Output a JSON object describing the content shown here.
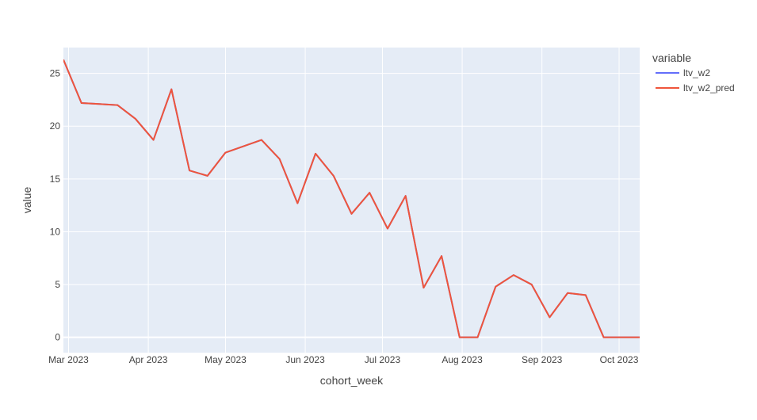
{
  "chart_data": {
    "type": "line",
    "xlabel": "cohort_week",
    "ylabel": "value",
    "x": [
      "2023-02-27",
      "2023-03-06",
      "2023-03-13",
      "2023-03-20",
      "2023-03-27",
      "2023-04-03",
      "2023-04-10",
      "2023-04-17",
      "2023-04-24",
      "2023-05-01",
      "2023-05-08",
      "2023-05-15",
      "2023-05-22",
      "2023-05-29",
      "2023-06-05",
      "2023-06-12",
      "2023-06-19",
      "2023-06-26",
      "2023-07-03",
      "2023-07-10",
      "2023-07-17",
      "2023-07-24",
      "2023-07-31",
      "2023-08-07",
      "2023-08-14",
      "2023-08-21",
      "2023-08-28",
      "2023-09-04",
      "2023-09-11",
      "2023-09-18",
      "2023-09-25",
      "2023-10-02",
      "2023-10-09"
    ],
    "xlim": [
      "2023-02-27",
      "2023-10-09"
    ],
    "x_ticks": [
      {
        "value": "2023-03-01",
        "label": "Mar 2023"
      },
      {
        "value": "2023-04-01",
        "label": "Apr 2023"
      },
      {
        "value": "2023-05-01",
        "label": "May 2023"
      },
      {
        "value": "2023-06-01",
        "label": "Jun 2023"
      },
      {
        "value": "2023-07-01",
        "label": "Jul 2023"
      },
      {
        "value": "2023-08-01",
        "label": "Aug 2023"
      },
      {
        "value": "2023-09-01",
        "label": "Sep 2023"
      },
      {
        "value": "2023-10-01",
        "label": "Oct 2023"
      }
    ],
    "y_ticks": [
      {
        "value": 0,
        "label": "0"
      },
      {
        "value": 5,
        "label": "5"
      },
      {
        "value": 10,
        "label": "10"
      },
      {
        "value": 15,
        "label": "15"
      },
      {
        "value": 20,
        "label": "20"
      },
      {
        "value": 25,
        "label": "25"
      }
    ],
    "ylim": [
      -1.45,
      27.45
    ],
    "grid": true,
    "legend": {
      "title": "variable",
      "placement": "top-right"
    },
    "series": [
      {
        "name": "ltv_w2",
        "color": "#636efa",
        "values": [
          26.3,
          22.2,
          22.1,
          22.0,
          20.7,
          18.7,
          23.5,
          15.8,
          15.3,
          17.5,
          18.1,
          18.7,
          16.9,
          12.7,
          17.4,
          15.3,
          11.7,
          13.7,
          10.3,
          13.4,
          4.7,
          7.7,
          0,
          0,
          4.8,
          5.9,
          5.0,
          1.9,
          4.2,
          4.0,
          0,
          0,
          0
        ]
      },
      {
        "name": "ltv_w2_pred",
        "color": "#ef553b",
        "values": [
          26.3,
          22.2,
          22.1,
          22.0,
          20.7,
          18.7,
          23.5,
          15.8,
          15.3,
          17.5,
          18.1,
          18.7,
          16.9,
          12.7,
          17.4,
          15.3,
          11.7,
          13.7,
          10.3,
          13.4,
          4.7,
          7.7,
          0,
          0,
          4.8,
          5.9,
          5.0,
          1.9,
          4.2,
          4.0,
          0,
          0,
          0
        ]
      }
    ]
  },
  "colors": {
    "plot_background": "#e5ecf6",
    "grid": "#ffffff",
    "text": "#444444"
  }
}
